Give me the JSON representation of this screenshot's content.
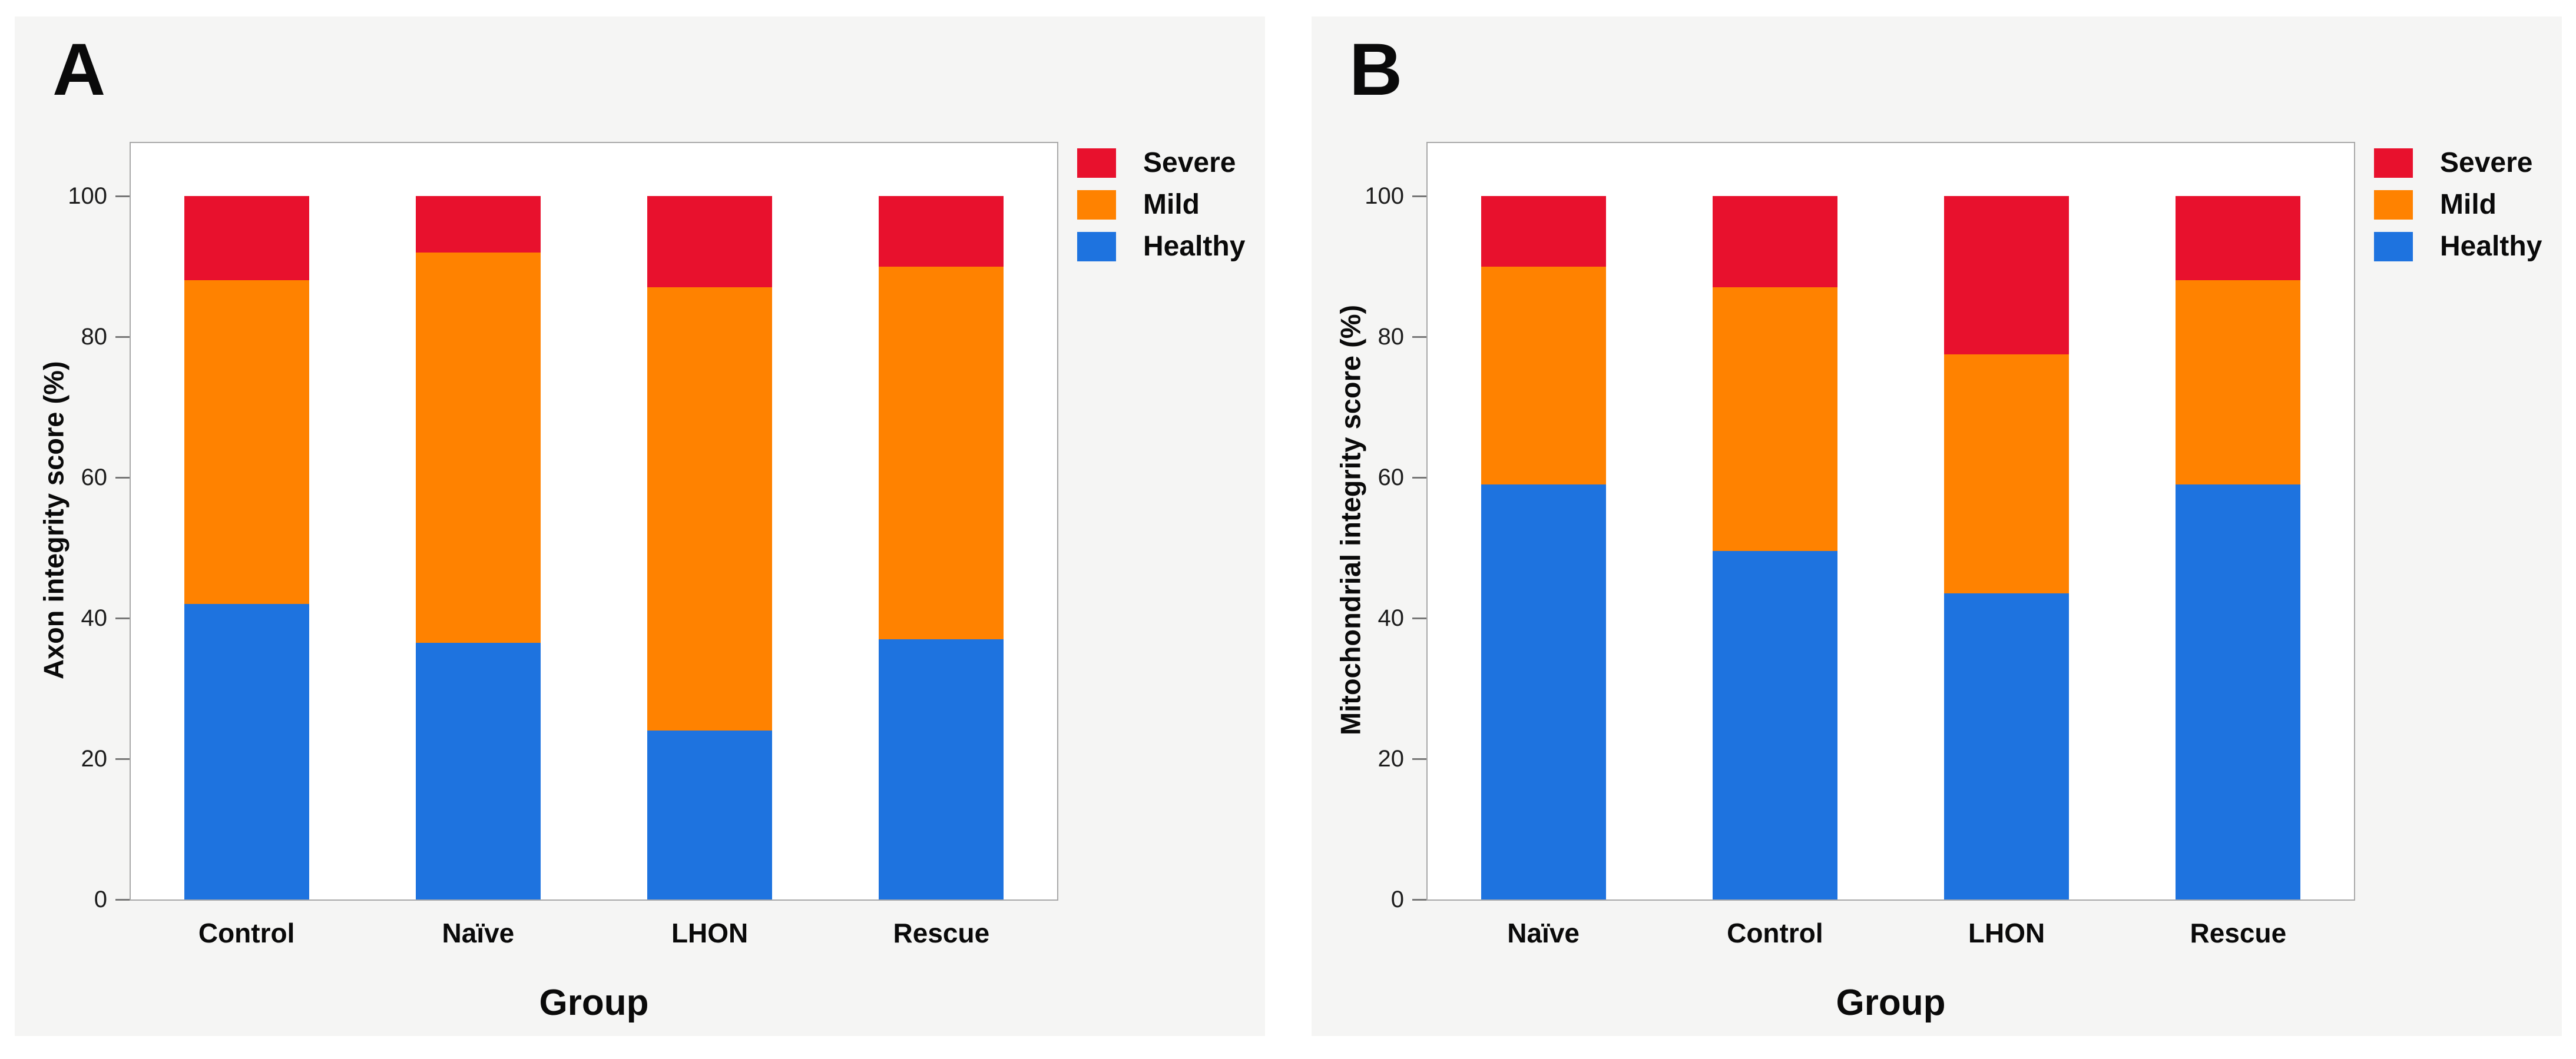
{
  "figure": {
    "background": "#FFFFFF",
    "panel_background": "#F5F5F4",
    "plot_background": "#FFFFFF",
    "plot_border_color": "#A8A8A8",
    "tick_mark_color": "#777777",
    "text_color": "#0A0A0A",
    "healthy_color": "#1E73DF",
    "mild_color": "#FF8200",
    "severe_color": "#E8112D"
  },
  "chart_data": [
    {
      "type": "bar",
      "stacked": true,
      "panel_label": "A",
      "ylabel": "Axon integrity score (%)",
      "xlabel": "Group",
      "categories": [
        "Control",
        "Naïve",
        "LHON",
        "Rescue"
      ],
      "series": [
        {
          "name": "Healthy",
          "color": "#1E73DF",
          "values": [
            42,
            36.5,
            24,
            37
          ]
        },
        {
          "name": "Mild",
          "color": "#FF8200",
          "values": [
            46,
            55.5,
            63,
            53
          ]
        },
        {
          "name": "Severe",
          "color": "#E8112D",
          "values": [
            12,
            8,
            13,
            10
          ]
        }
      ],
      "ylim": [
        0,
        100
      ],
      "yticks": [
        0,
        20,
        40,
        60,
        80,
        100
      ],
      "grid": false,
      "legend": [
        "Severe",
        "Mild",
        "Healthy"
      ],
      "legend_position": "top-right"
    },
    {
      "type": "bar",
      "stacked": true,
      "panel_label": "B",
      "ylabel": "Mitochondrial integrity score (%)",
      "xlabel": "Group",
      "categories": [
        "Naïve",
        "Control",
        "LHON",
        "Rescue"
      ],
      "series": [
        {
          "name": "Healthy",
          "color": "#1E73DF",
          "values": [
            59,
            49.5,
            43.5,
            59
          ]
        },
        {
          "name": "Mild",
          "color": "#FF8200",
          "values": [
            31,
            37.5,
            34,
            29
          ]
        },
        {
          "name": "Severe",
          "color": "#E8112D",
          "values": [
            10,
            13,
            22.5,
            12
          ]
        }
      ],
      "ylim": [
        0,
        100
      ],
      "yticks": [
        0,
        20,
        40,
        60,
        80,
        100
      ],
      "grid": false,
      "legend": [
        "Severe",
        "Mild",
        "Healthy"
      ],
      "legend_position": "top-right"
    }
  ]
}
